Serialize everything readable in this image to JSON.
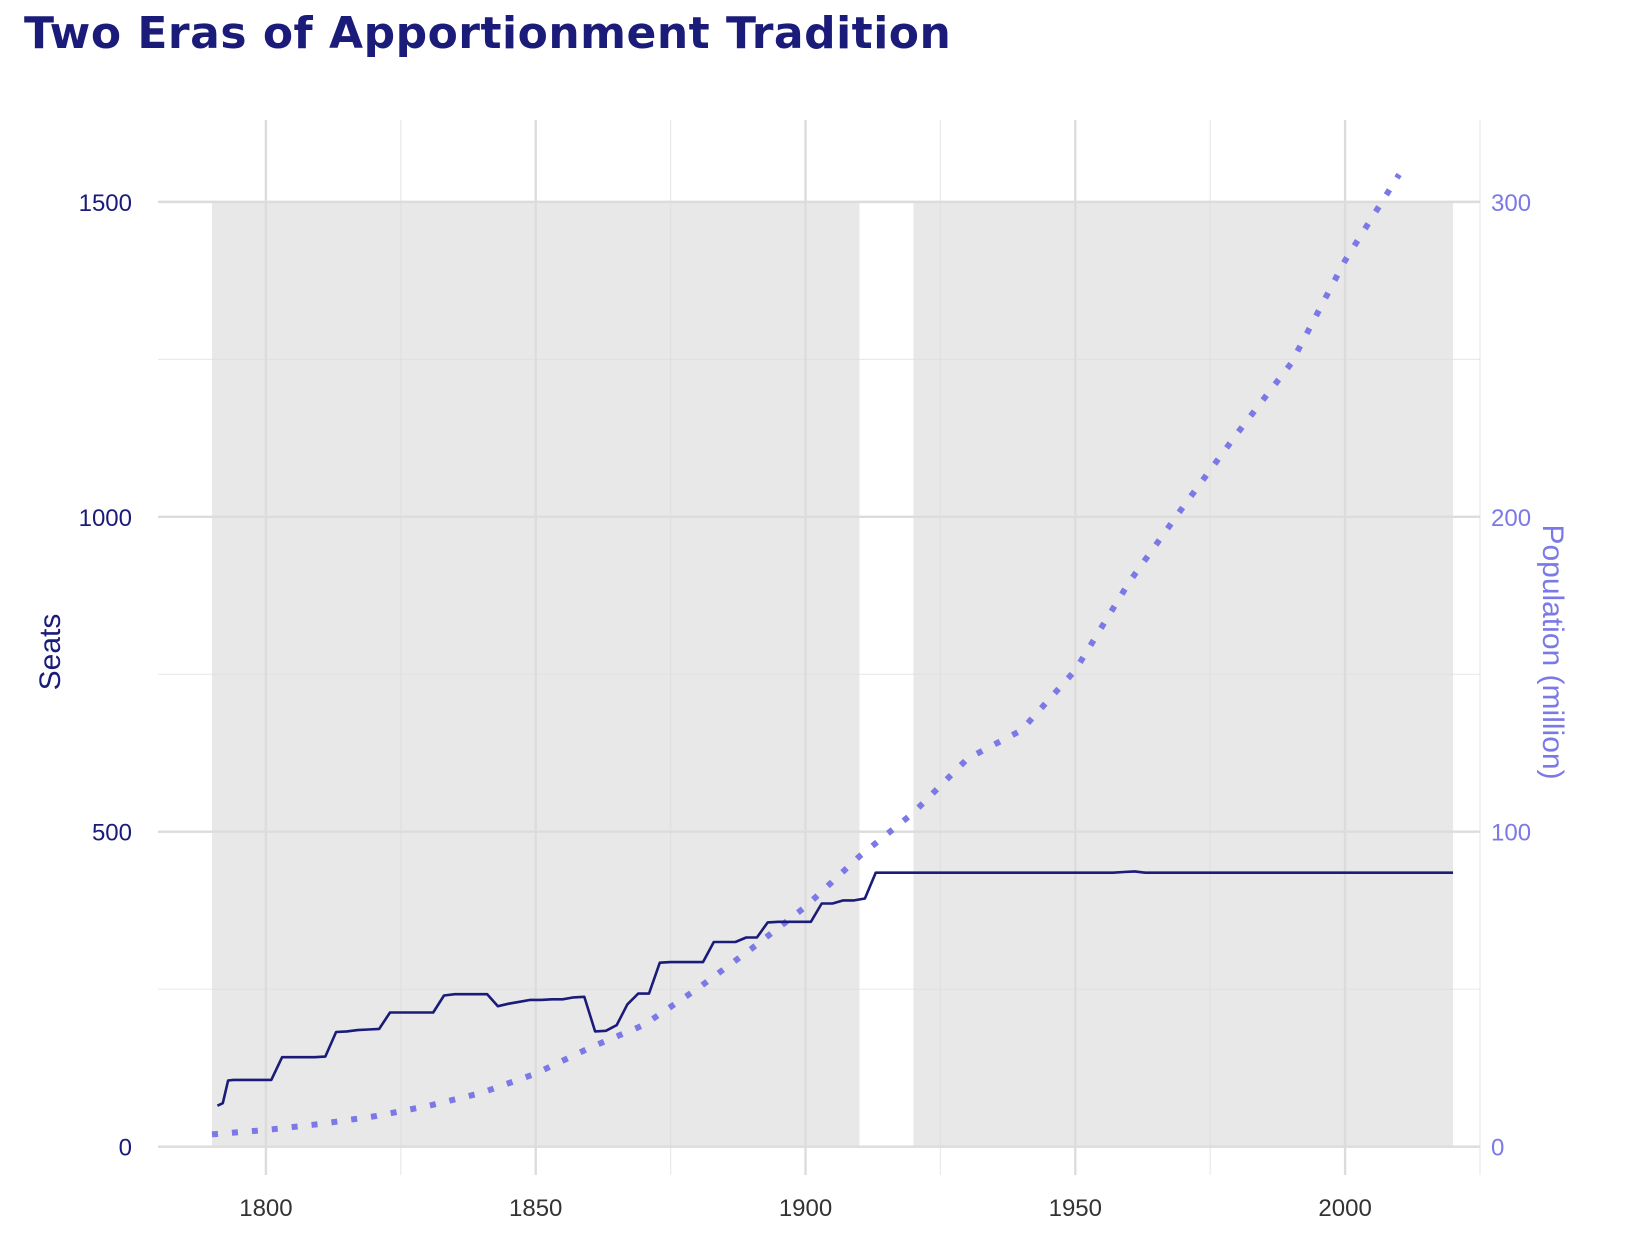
{
  "title": "Two Eras of Apportionment Tradition",
  "colors": {
    "title": "#1b1b7a",
    "seats_line": "#1b1b7a",
    "population_line": "#7b79e6",
    "era_shading": "#e8e8e8",
    "grid": "#dcdcdc"
  },
  "chart_data": {
    "type": "line",
    "title": "Two Eras of Apportionment Tradition",
    "xlabel": "",
    "ylabel": "Seats",
    "ylabel_right": "Population (million)",
    "xlim": [
      1780,
      2025
    ],
    "ylim": [
      -45,
      1630
    ],
    "ylim_right": [
      -9,
      326
    ],
    "x_ticks": [
      1800,
      1850,
      1900,
      1950,
      2000
    ],
    "y_ticks": [
      0,
      500,
      1000,
      1500
    ],
    "y_ticks_right": [
      0,
      100,
      200,
      300
    ],
    "grid": true,
    "eras": [
      {
        "start": 1790,
        "end": 1910
      },
      {
        "start": 1920,
        "end": 2020
      }
    ],
    "series": [
      {
        "name": "Seats",
        "axis": "left",
        "style": "solid",
        "points": [
          [
            1791,
            65
          ],
          [
            1792,
            69
          ],
          [
            1793,
            105
          ],
          [
            1794,
            106
          ],
          [
            1795,
            106
          ],
          [
            1797,
            106
          ],
          [
            1799,
            106
          ],
          [
            1801,
            106
          ],
          [
            1803,
            142
          ],
          [
            1805,
            142
          ],
          [
            1807,
            142
          ],
          [
            1809,
            142
          ],
          [
            1811,
            143
          ],
          [
            1813,
            182
          ],
          [
            1815,
            183
          ],
          [
            1817,
            185
          ],
          [
            1819,
            186
          ],
          [
            1821,
            187
          ],
          [
            1823,
            213
          ],
          [
            1825,
            213
          ],
          [
            1827,
            213
          ],
          [
            1829,
            213
          ],
          [
            1831,
            213
          ],
          [
            1833,
            240
          ],
          [
            1835,
            242
          ],
          [
            1837,
            242
          ],
          [
            1839,
            242
          ],
          [
            1841,
            242
          ],
          [
            1843,
            223
          ],
          [
            1845,
            227
          ],
          [
            1847,
            230
          ],
          [
            1849,
            233
          ],
          [
            1851,
            233
          ],
          [
            1853,
            234
          ],
          [
            1855,
            234
          ],
          [
            1857,
            237
          ],
          [
            1859,
            238
          ],
          [
            1861,
            183
          ],
          [
            1863,
            184
          ],
          [
            1865,
            193
          ],
          [
            1867,
            226
          ],
          [
            1869,
            243
          ],
          [
            1871,
            243
          ],
          [
            1873,
            292
          ],
          [
            1875,
            293
          ],
          [
            1877,
            293
          ],
          [
            1879,
            293
          ],
          [
            1881,
            293
          ],
          [
            1883,
            325
          ],
          [
            1885,
            325
          ],
          [
            1887,
            325
          ],
          [
            1889,
            332
          ],
          [
            1891,
            332
          ],
          [
            1893,
            356
          ],
          [
            1895,
            357
          ],
          [
            1897,
            357
          ],
          [
            1899,
            357
          ],
          [
            1901,
            357
          ],
          [
            1903,
            386
          ],
          [
            1905,
            386
          ],
          [
            1907,
            391
          ],
          [
            1909,
            391
          ],
          [
            1911,
            394
          ],
          [
            1913,
            435
          ],
          [
            1915,
            435
          ],
          [
            1920,
            435
          ],
          [
            1930,
            435
          ],
          [
            1940,
            435
          ],
          [
            1950,
            435
          ],
          [
            1957,
            435
          ],
          [
            1959,
            436
          ],
          [
            1961,
            437
          ],
          [
            1963,
            435
          ],
          [
            1970,
            435
          ],
          [
            1980,
            435
          ],
          [
            1990,
            435
          ],
          [
            2000,
            435
          ],
          [
            2010,
            435
          ],
          [
            2020,
            435
          ]
        ]
      },
      {
        "name": "Population (million)",
        "axis": "right",
        "style": "dotted",
        "points": [
          [
            1790,
            3.9
          ],
          [
            1800,
            5.3
          ],
          [
            1810,
            7.2
          ],
          [
            1820,
            9.6
          ],
          [
            1830,
            12.9
          ],
          [
            1840,
            17.1
          ],
          [
            1850,
            23.2
          ],
          [
            1860,
            31.4
          ],
          [
            1870,
            38.6
          ],
          [
            1880,
            50.2
          ],
          [
            1890,
            62.9
          ],
          [
            1900,
            76.2
          ],
          [
            1910,
            92.2
          ],
          [
            1920,
            106.0
          ],
          [
            1930,
            123.2
          ],
          [
            1940,
            132.2
          ],
          [
            1950,
            151.3
          ],
          [
            1960,
            179.3
          ],
          [
            1970,
            203.2
          ],
          [
            1980,
            226.5
          ],
          [
            1990,
            248.7
          ],
          [
            2000,
            281.4
          ],
          [
            2010,
            308.7
          ]
        ]
      }
    ]
  }
}
